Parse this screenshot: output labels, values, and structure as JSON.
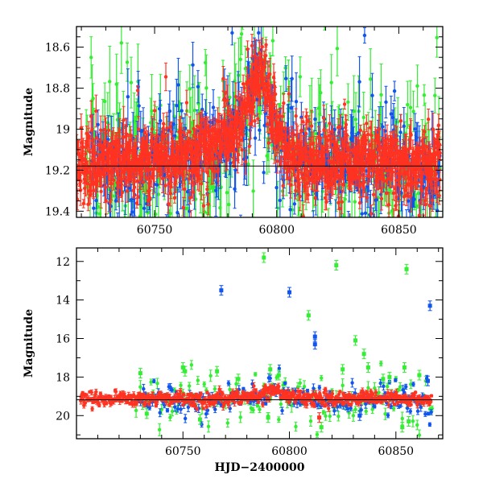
{
  "chart_data": [
    {
      "type": "scatter",
      "title": "",
      "xlabel": "",
      "ylabel": "Magnitude",
      "xlim": [
        60718,
        60868
      ],
      "ylim": [
        19.43,
        18.5
      ],
      "y_inverted": true,
      "x_ticks": [
        60750,
        60800,
        60850
      ],
      "x_tick_labels": [
        "60750",
        "60800",
        "60850"
      ],
      "y_ticks": [
        18.6,
        18.8,
        19.0,
        19.2,
        19.4
      ],
      "y_tick_labels": [
        "18.6",
        "18.8",
        "19",
        "19.2",
        "19.4"
      ],
      "grid": false,
      "legend": "none",
      "reference_line": {
        "y": 19.18,
        "color": "#000000"
      },
      "series": [
        {
          "color": "#33ee33",
          "x_start": 60722,
          "x_end": 60867,
          "step": 0.4,
          "baseline": 19.17,
          "spread": 0.3,
          "error": 0.12
        },
        {
          "color": "#1155ee",
          "x_start": 60724,
          "x_end": 60867,
          "step": 0.35,
          "baseline": 19.17,
          "spread": 0.22,
          "error": 0.09
        },
        {
          "color": "#ff3322",
          "x_start": 60718,
          "x_end": 60867,
          "step": 0.12,
          "baseline": 19.16,
          "spread": 0.12,
          "error": 0.05
        }
      ],
      "trend": {
        "x": [
          60718,
          60760,
          60775,
          60785,
          60790,
          60793,
          60796,
          60800,
          60806,
          60812,
          60818,
          60868
        ],
        "y": [
          19.16,
          19.15,
          19.08,
          18.98,
          18.8,
          18.72,
          18.82,
          19.0,
          19.1,
          19.15,
          19.16,
          19.17
        ]
      }
    },
    {
      "type": "scatter",
      "title": "",
      "xlabel": "HJD−2400000",
      "ylabel": "Magnitude",
      "xlim": [
        60700,
        60872
      ],
      "ylim": [
        21.2,
        11.3
      ],
      "y_inverted": true,
      "x_ticks": [
        60750,
        60800,
        60850
      ],
      "x_tick_labels": [
        "60750",
        "60800",
        "60850"
      ],
      "y_ticks": [
        12,
        14,
        16,
        18,
        20
      ],
      "y_tick_labels": [
        "12",
        "14",
        "16",
        "18",
        "20"
      ],
      "grid": false,
      "legend": "none",
      "reference_line": {
        "y": 19.18,
        "color": "#000000"
      },
      "series": [
        {
          "color": "#33ee33",
          "x_start": 60728,
          "x_end": 60867,
          "step": 1.0,
          "baseline": 19.15,
          "spread": 0.9,
          "error": 0.22
        },
        {
          "color": "#1155ee",
          "x_start": 60728,
          "x_end": 60867,
          "step": 0.7,
          "baseline": 19.15,
          "spread": 0.55,
          "error": 0.15
        },
        {
          "color": "#ff3322",
          "x_start": 60702,
          "x_end": 60867,
          "step": 0.3,
          "baseline": 19.14,
          "spread": 0.25,
          "error": 0.12
        }
      ],
      "outliers": [
        {
          "color": "#33ee33",
          "x": 60788,
          "y": 11.8
        },
        {
          "color": "#33ee33",
          "x": 60822,
          "y": 12.2
        },
        {
          "color": "#33ee33",
          "x": 60855,
          "y": 12.4
        },
        {
          "color": "#1155ee",
          "x": 60768,
          "y": 13.5
        },
        {
          "color": "#1155ee",
          "x": 60800,
          "y": 13.6
        },
        {
          "color": "#1155ee",
          "x": 60866,
          "y": 14.3
        },
        {
          "color": "#33ee33",
          "x": 60809,
          "y": 14.8
        },
        {
          "color": "#1155ee",
          "x": 60812,
          "y": 15.9
        },
        {
          "color": "#1155ee",
          "x": 60812,
          "y": 16.3
        },
        {
          "color": "#33ee33",
          "x": 60831,
          "y": 16.1
        },
        {
          "color": "#33ee33",
          "x": 60835,
          "y": 16.8
        },
        {
          "color": "#33ee33",
          "x": 60750,
          "y": 17.5
        },
        {
          "color": "#33ee33",
          "x": 60751,
          "y": 17.7
        },
        {
          "color": "#33ee33",
          "x": 60730,
          "y": 17.8
        },
        {
          "color": "#33ee33",
          "x": 60766,
          "y": 17.7
        },
        {
          "color": "#33ee33",
          "x": 60791,
          "y": 17.6
        },
        {
          "color": "#33ee33",
          "x": 60825,
          "y": 17.6
        },
        {
          "color": "#33ee33",
          "x": 60837,
          "y": 17.5
        },
        {
          "color": "#33ee33",
          "x": 60854,
          "y": 17.5
        },
        {
          "color": "#33ee33",
          "x": 60776,
          "y": 18.1
        },
        {
          "color": "#33ee33",
          "x": 60795,
          "y": 17.9
        },
        {
          "color": "#33ee33",
          "x": 60847,
          "y": 18.0
        },
        {
          "color": "#33ee33",
          "x": 60861,
          "y": 17.9
        },
        {
          "color": "#1155ee",
          "x": 60865,
          "y": 18.2
        },
        {
          "color": "#33ee33",
          "x": 60844,
          "y": 18.1
        },
        {
          "color": "#33ee33",
          "x": 60733,
          "y": 19.9
        },
        {
          "color": "#33ee33",
          "x": 60758,
          "y": 20.2
        },
        {
          "color": "#33ee33",
          "x": 60790,
          "y": 20.1
        },
        {
          "color": "#33ee33",
          "x": 60815,
          "y": 20.6
        },
        {
          "color": "#33ee33",
          "x": 60853,
          "y": 20.6
        },
        {
          "color": "#33ee33",
          "x": 60856,
          "y": 20.3
        },
        {
          "color": "#ff3322",
          "x": 60814,
          "y": 20.1
        },
        {
          "color": "#1155ee",
          "x": 60833,
          "y": 20.0
        }
      ],
      "trend": {
        "x": [
          60700,
          60760,
          60775,
          60785,
          60790,
          60793,
          60796,
          60800,
          60806,
          60812,
          60818,
          60872
        ],
        "y": [
          19.16,
          19.15,
          19.08,
          18.98,
          18.8,
          18.72,
          18.82,
          19.0,
          19.1,
          19.15,
          19.16,
          19.17
        ]
      }
    }
  ]
}
